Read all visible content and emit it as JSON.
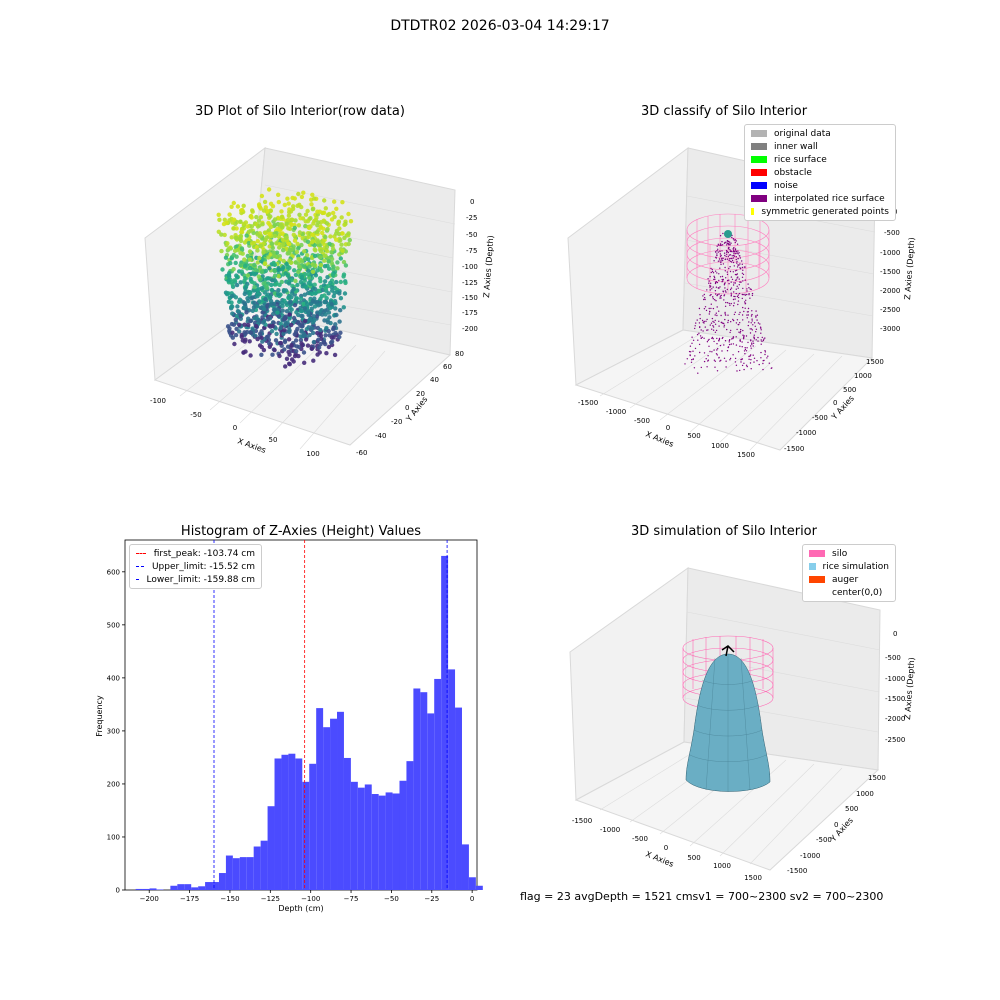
{
  "figure": {
    "title": "DTDTR02 2026-03-04 14:29:17"
  },
  "panel1": {
    "title": "3D Plot of Silo Interior(row data)",
    "xlabel": "X Axies",
    "ylabel": "Y Axies",
    "zlabel": "Z Axies (Depth)",
    "xticks": [
      "-100",
      "-50",
      "0",
      "50",
      "100"
    ],
    "yticks": [
      "-60",
      "-40",
      "-20",
      "0",
      "20",
      "40",
      "60",
      "80"
    ],
    "zticks": [
      "0",
      "-25",
      "-50",
      "-75",
      "-100",
      "-125",
      "-150",
      "-175",
      "-200"
    ]
  },
  "panel2": {
    "title": "3D classify of Silo Interior",
    "xlabel": "X Axies",
    "ylabel": "Y Axies",
    "zlabel": "Z Axies (Depth)",
    "xticks": [
      "-1500",
      "-1000",
      "-500",
      "0",
      "500",
      "1000",
      "1500"
    ],
    "yticks": [
      "-1500",
      "-1000",
      "-500",
      "0",
      "500",
      "1000",
      "1500"
    ],
    "zticks": [
      "0",
      "-500",
      "-1000",
      "-1500",
      "-2000",
      "-2500",
      "-3000"
    ],
    "legend": [
      {
        "label": "original data",
        "color": "#b3b3b3"
      },
      {
        "label": "inner wall",
        "color": "#808080"
      },
      {
        "label": "rice surface",
        "color": "#00ff00"
      },
      {
        "label": "obstacle",
        "color": "#ff0000"
      },
      {
        "label": "noise",
        "color": "#0000ff"
      },
      {
        "label": "interpolated rice surface",
        "color": "#800080"
      },
      {
        "label": "symmetric generated points",
        "color": "#ffff00"
      }
    ]
  },
  "panel3": {
    "title": "Histogram of Z-Axies (Height) Values",
    "legend": [
      {
        "label": "first_peak: -103.74 cm",
        "color": "#ff0000"
      },
      {
        "label": "Upper_limit: -15.52 cm",
        "color": "#0000ff"
      },
      {
        "label": "Lower_limit: -159.88 cm",
        "color": "#0000ff"
      }
    ]
  },
  "panel4": {
    "title": "3D simulation of Silo Interior",
    "xlabel": "X Axies",
    "ylabel": "Y Axies",
    "zlabel": "Z Axies (Depth)",
    "xticks": [
      "-1500",
      "-1000",
      "-500",
      "0",
      "500",
      "1000",
      "1500"
    ],
    "yticks": [
      "-1500",
      "-1000",
      "-500",
      "0",
      "500",
      "1000",
      "1500"
    ],
    "zticks": [
      "0",
      "-500",
      "-1000",
      "-1500",
      "-2000",
      "-2500"
    ],
    "legend": [
      {
        "label": "silo",
        "color": "#ff69b4"
      },
      {
        "label": "rice simulation",
        "color": "#87ceeb"
      },
      {
        "label": "auger",
        "color": "#ff4500"
      },
      {
        "label": "center(0,0)",
        "color": "#ffffff"
      }
    ]
  },
  "footer": {
    "text": "flag = 23   avgDepth = 1521 cmsv1 = 700~2300  sv2 = 700~2300"
  },
  "chart_data": {
    "type": "bar",
    "title": "Histogram of Z-Axies (Height) Values",
    "xlabel": "Depth (cm)",
    "ylabel": "Frequency",
    "xlim": [
      -215,
      3
    ],
    "ylim": [
      0,
      660
    ],
    "xticks": [
      -200,
      -175,
      -150,
      -125,
      -100,
      -75,
      -50,
      -25,
      0
    ],
    "yticks": [
      0,
      100,
      200,
      300,
      400,
      500,
      600
    ],
    "bin_width": 4.3,
    "bin_start": -208.4,
    "values": [
      2,
      2,
      3,
      1,
      0,
      8,
      11,
      11,
      5,
      7,
      15,
      15,
      32,
      65,
      60,
      62,
      62,
      82,
      93,
      158,
      248,
      255,
      257,
      248,
      204,
      238,
      343,
      307,
      323,
      336,
      249,
      204,
      193,
      199,
      181,
      178,
      184,
      182,
      206,
      243,
      380,
      373,
      333,
      398,
      630,
      416,
      344,
      86,
      24,
      8
    ],
    "series_color": "#4b4bff",
    "vlines": [
      {
        "name": "first_peak",
        "x": -103.74,
        "color": "#ff0000"
      },
      {
        "name": "Upper_limit",
        "x": -15.52,
        "color": "#0000ff"
      },
      {
        "name": "Lower_limit",
        "x": -159.88,
        "color": "#0000ff"
      }
    ]
  }
}
